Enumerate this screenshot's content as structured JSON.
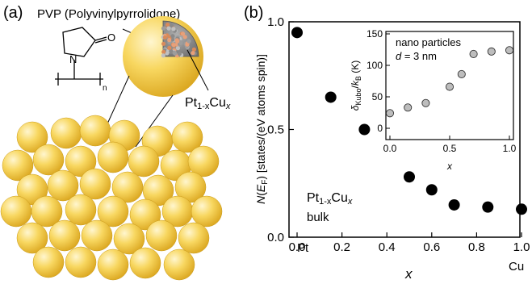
{
  "panel_a": {
    "label": "(a)",
    "pvp_label": "PVP (Polyvinylpyrrolidone)",
    "molecule_n": "n",
    "molecule_O": "O",
    "molecule_N": "N",
    "nanoparticle_label": "Pt1-xCux",
    "colors": {
      "sphere": "#f5c842",
      "core": "#8a8a8a"
    }
  },
  "panel_b": {
    "label": "(b)",
    "x_end_labels": [
      "Pt",
      "Cu"
    ],
    "bulk_label": "Pt1-xCux",
    "bulk_word": "bulk"
  },
  "chart_data": [
    {
      "type": "scatter",
      "title": "",
      "xlabel": "x",
      "ylabel": "N(E_F) [states/(eV atoms spin)]",
      "xlim": [
        0.0,
        1.0
      ],
      "ylim": [
        0.0,
        1.0
      ],
      "xticks": [
        "0.0",
        "0.2",
        "0.4",
        "0.6",
        "0.8",
        "1.0"
      ],
      "yticks": [
        "0.0",
        "0.5",
        "1.0"
      ],
      "series": [
        {
          "x": [
            0.0,
            0.15,
            0.3,
            0.5,
            0.6,
            0.7,
            0.85,
            1.0
          ],
          "y": [
            0.95,
            0.65,
            0.5,
            0.28,
            0.22,
            0.15,
            0.14,
            0.13
          ],
          "color": "#000000"
        }
      ]
    },
    {
      "type": "scatter",
      "title": "",
      "xlabel": "x",
      "ylabel": "δKubo/kB (K)",
      "annotation_line1": "nano particles",
      "annotation_line2": "d = 3 nm",
      "xlim": [
        0.0,
        1.0
      ],
      "ylim": [
        0,
        150
      ],
      "xticks": [
        "0.0",
        "0.5",
        "1.0"
      ],
      "yticks": [
        "0",
        "50",
        "100",
        "150"
      ],
      "series": [
        {
          "x": [
            0.0,
            0.15,
            0.3,
            0.5,
            0.6,
            0.7,
            0.85,
            1.0
          ],
          "y": [
            24,
            33,
            40,
            66,
            86,
            118,
            122,
            124
          ],
          "color": "#bdbdbd"
        }
      ]
    }
  ]
}
